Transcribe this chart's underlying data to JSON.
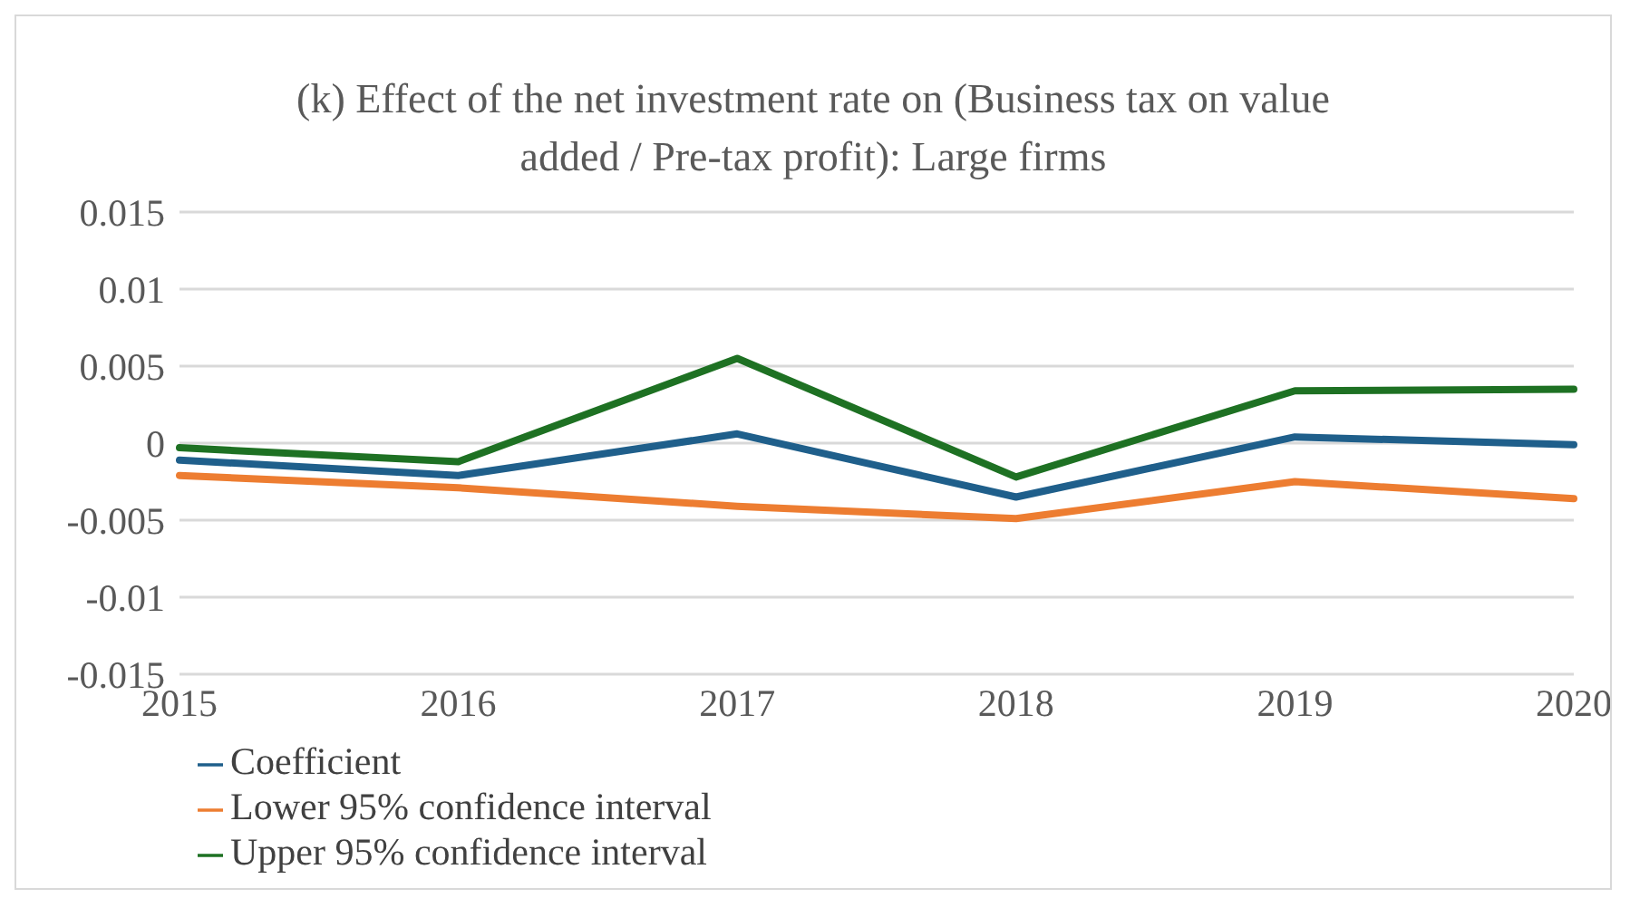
{
  "chart_data": {
    "type": "line",
    "title": "(k) Effect of the net investment rate on (Business tax on value added / Pre-tax profit): Large firms",
    "categories": [
      "2015",
      "2016",
      "2017",
      "2018",
      "2019",
      "2020"
    ],
    "series": [
      {
        "name": "Coefficient",
        "color": "#1f5f8b",
        "values": [
          -0.0011,
          -0.0021,
          0.0006,
          -0.0035,
          0.0004,
          -0.0001
        ]
      },
      {
        "name": "Lower 95% confidence interval",
        "color": "#ed7d31",
        "values": [
          -0.0021,
          -0.0029,
          -0.0041,
          -0.0049,
          -0.0025,
          -0.0036
        ]
      },
      {
        "name": "Upper 95% confidence interval",
        "color": "#1e7123",
        "values": [
          -0.0003,
          -0.0012,
          0.0055,
          -0.0022,
          0.0034,
          0.0035
        ]
      }
    ],
    "ylim": [
      -0.015,
      0.015
    ],
    "yticks": [
      -0.015,
      -0.01,
      -0.005,
      0,
      0.005,
      0.01,
      0.015
    ],
    "grid": "y",
    "legend": "bottom",
    "marker": "none",
    "line_style": "solid"
  }
}
